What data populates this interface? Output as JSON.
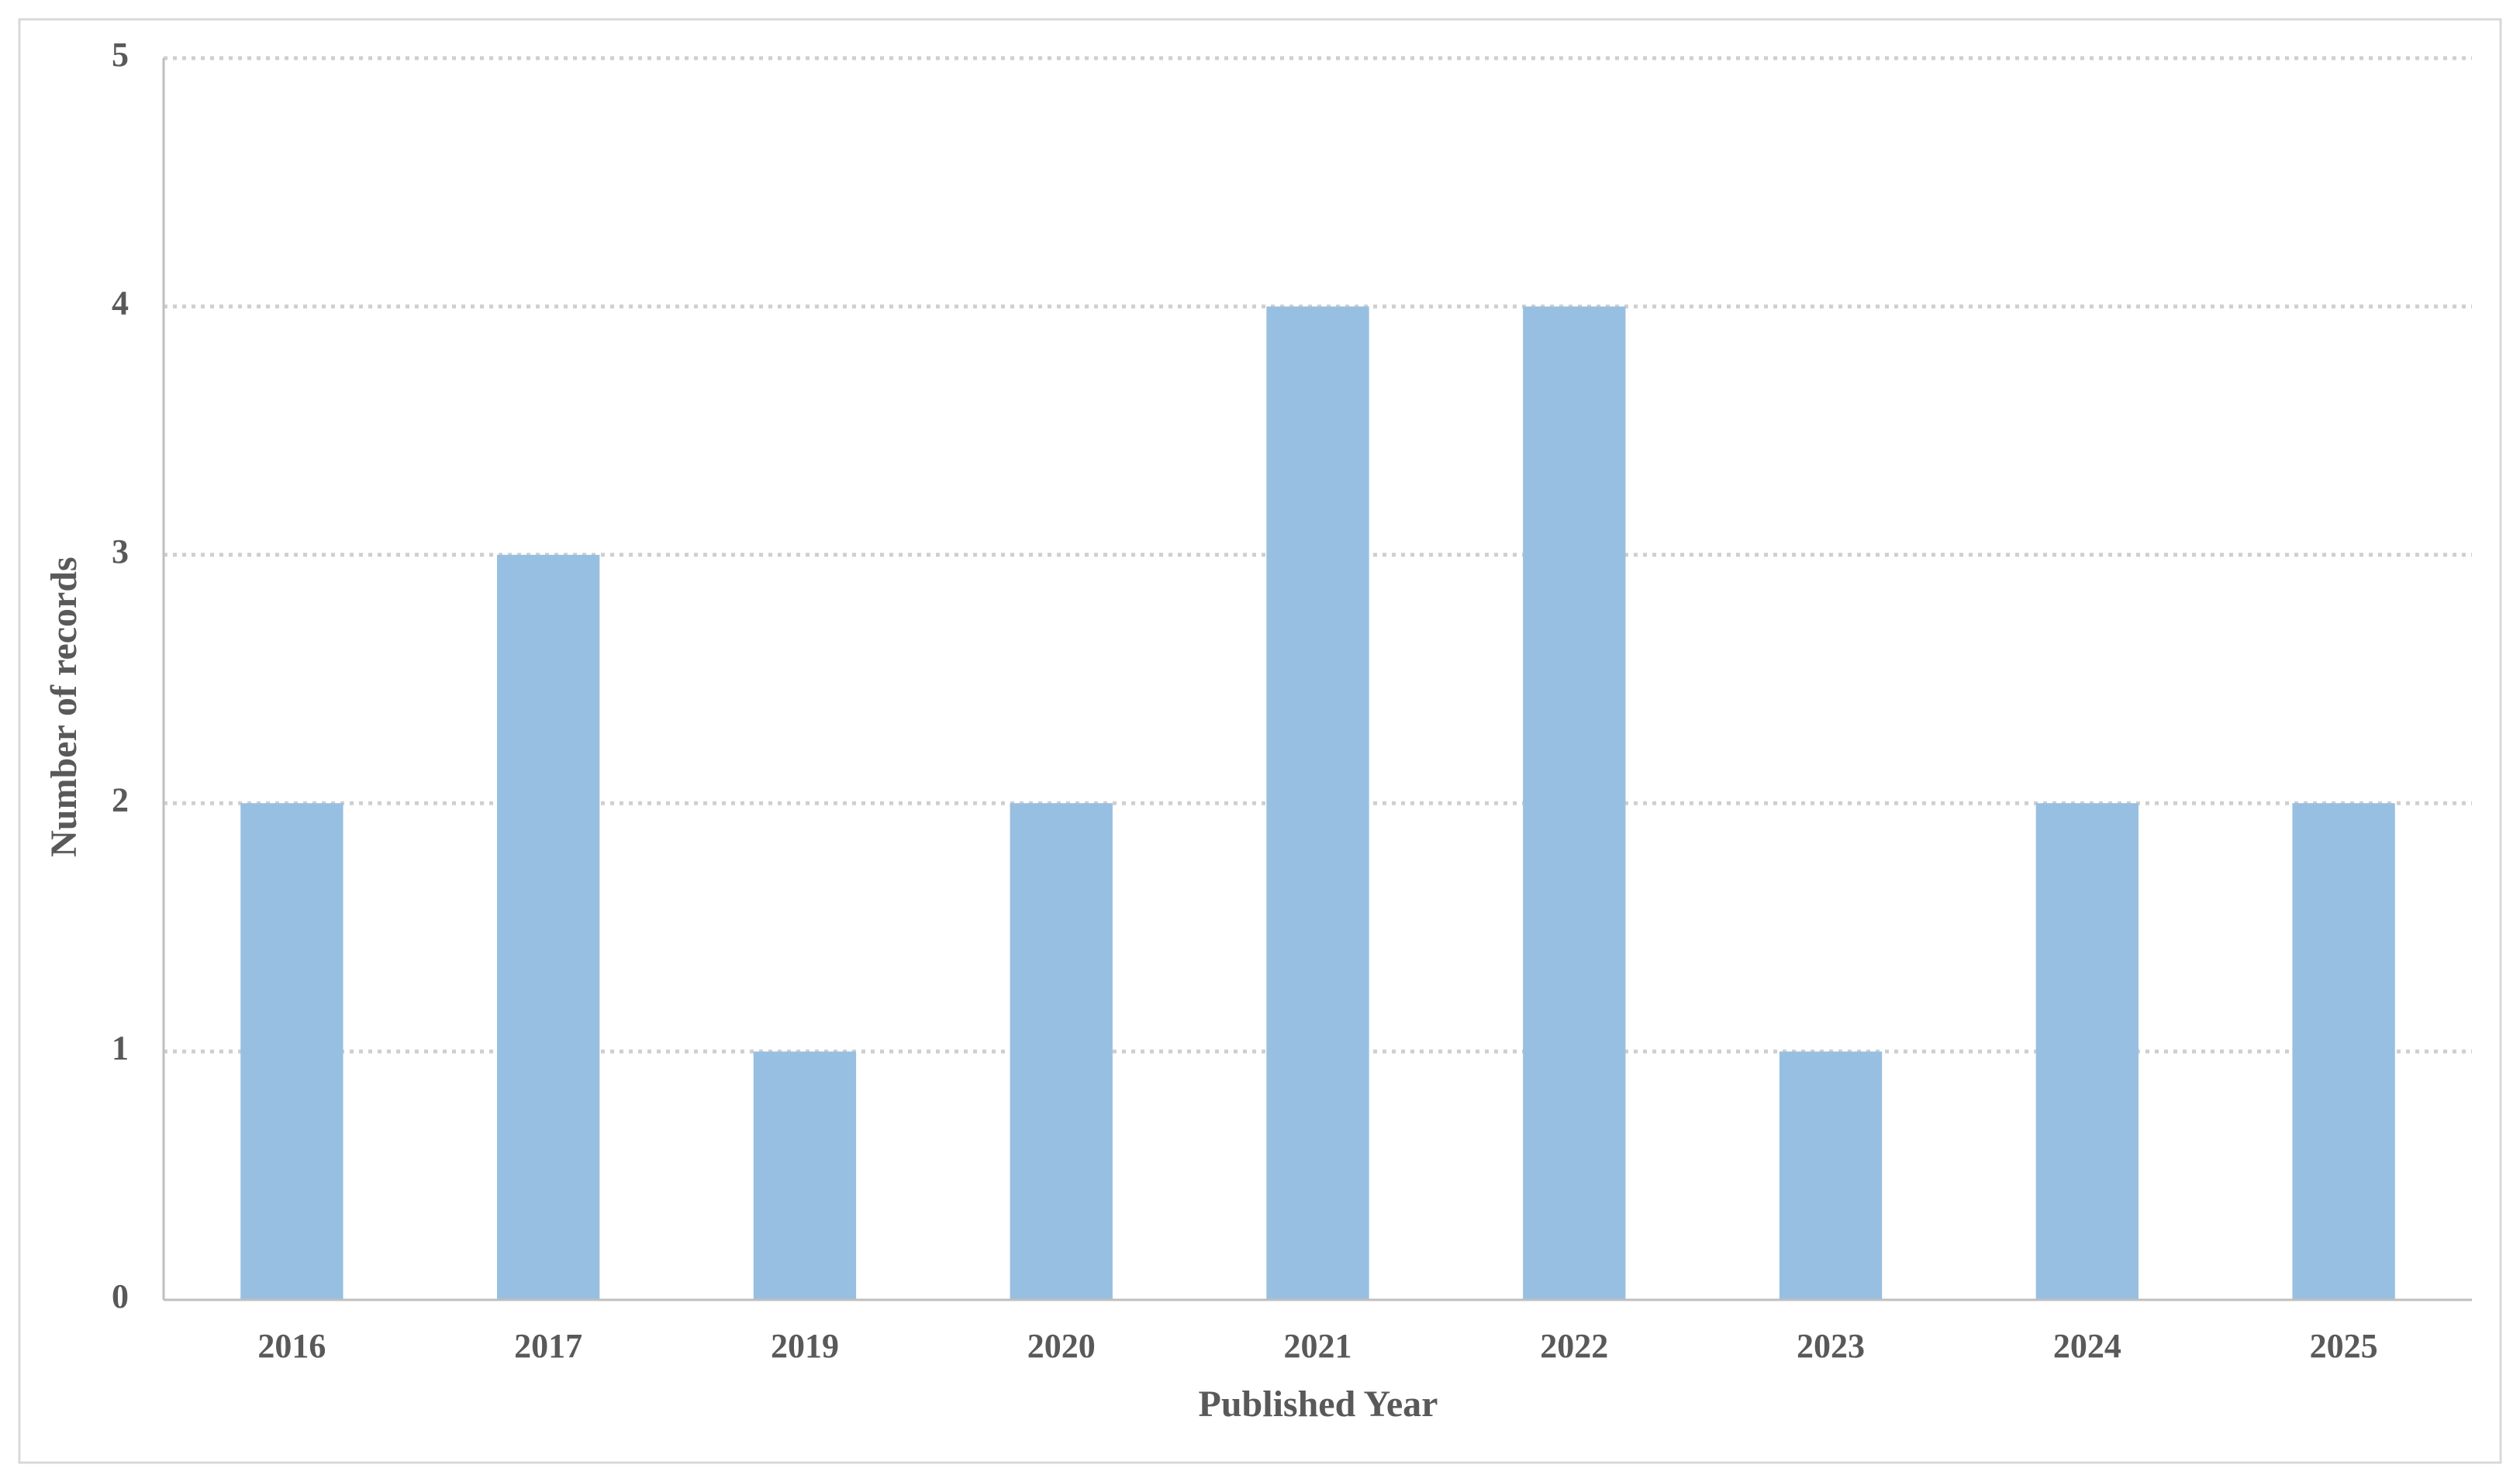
{
  "chart_data": {
    "type": "bar",
    "x_label": "Published Year",
    "y_label": "Number of records",
    "categories": [
      "2016",
      "2017",
      "2019",
      "2020",
      "2021",
      "2022",
      "2023",
      "2024",
      "2025"
    ],
    "values": [
      2,
      3,
      1,
      2,
      4,
      4,
      1,
      2,
      2
    ],
    "color": "#97bfe2",
    "ylim": [
      0,
      5
    ],
    "yticks": [
      0,
      1,
      2,
      3,
      4,
      5
    ],
    "grid": true
  }
}
